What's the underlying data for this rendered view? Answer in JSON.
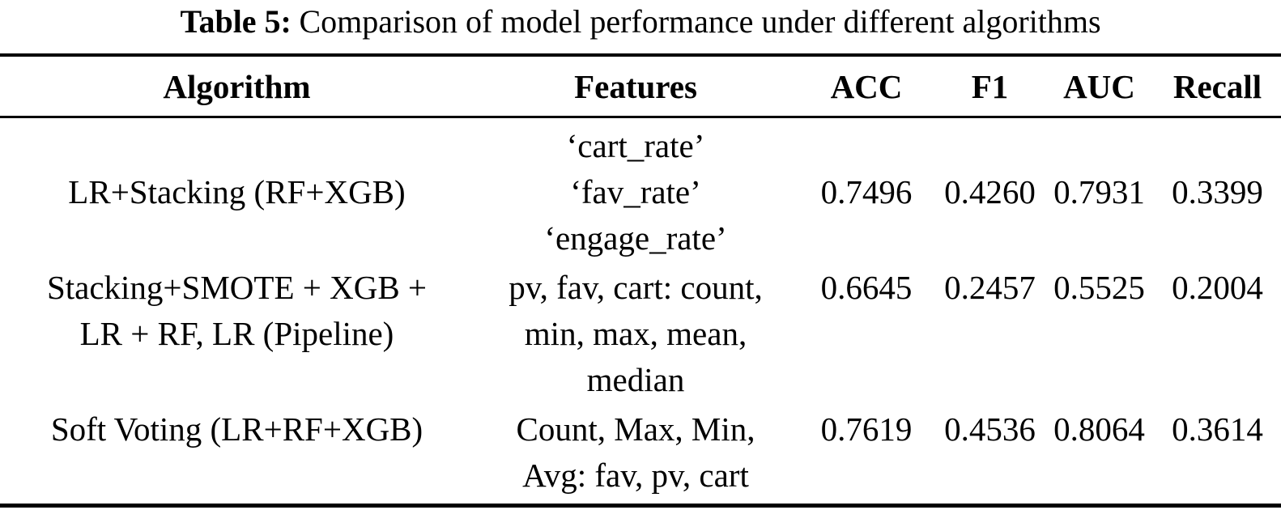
{
  "caption": {
    "label": "Table 5:",
    "text": "Comparison of model performance under different algorithms"
  },
  "table": {
    "headers": [
      "Algorithm",
      "Features",
      "ACC",
      "F1",
      "AUC",
      "Recall"
    ],
    "rows": [
      {
        "algorithm_lines": [
          "LR+Stacking (RF+XGB)"
        ],
        "features_lines": [
          "‘cart_rate’",
          "‘fav_rate’",
          "‘engage_rate’"
        ],
        "metrics": {
          "acc": "0.7496",
          "f1": "0.4260",
          "auc": "0.7931",
          "recall": "0.3399"
        }
      },
      {
        "algorithm_lines": [
          "Stacking+SMOTE + XGB +",
          "LR + RF, LR (Pipeline)"
        ],
        "features_lines": [
          "pv, fav, cart: count,",
          "min, max, mean,",
          "median"
        ],
        "metrics": {
          "acc": "0.6645",
          "f1": "0.2457",
          "auc": "0.5525",
          "recall": "0.2004"
        }
      },
      {
        "algorithm_lines": [
          "Soft Voting (LR+RF+XGB)"
        ],
        "features_lines": [
          "Count, Max, Min,",
          "Avg: fav, pv, cart"
        ],
        "metrics": {
          "acc": "0.7619",
          "f1": "0.4536",
          "auc": "0.8064",
          "recall": "0.3614"
        }
      }
    ]
  },
  "colors": {
    "text": "#000000",
    "background": "#ffffff",
    "rule": "#000000"
  }
}
